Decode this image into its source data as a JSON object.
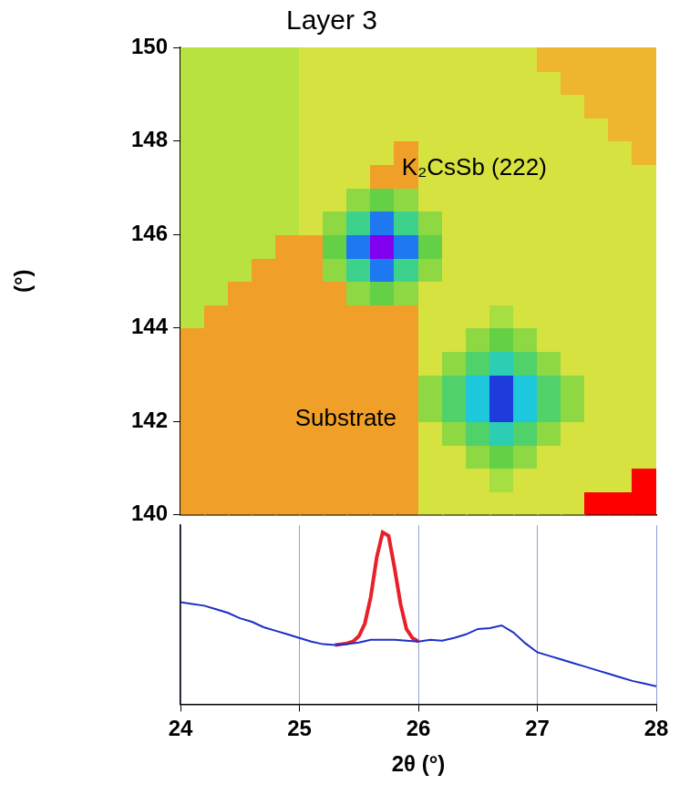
{
  "chart_data": [
    {
      "type": "heatmap",
      "title": "Layer 3",
      "y_label": "(°)",
      "xlim": [
        24,
        28
      ],
      "ylim": [
        140,
        150
      ],
      "yticks": [
        140,
        142,
        144,
        146,
        148,
        150
      ],
      "tick_labels": "y",
      "zlim": [
        0,
        10
      ],
      "cells": {
        "x": [
          24.1,
          24.3,
          24.5,
          24.7,
          24.9,
          25.1,
          25.3,
          25.5,
          25.7,
          25.9,
          26.1,
          26.3,
          26.5,
          26.7,
          26.9,
          27.1,
          27.3,
          27.5,
          27.7,
          27.9
        ],
        "y": [
          140.25,
          140.75,
          141.25,
          141.75,
          142.25,
          142.75,
          143.25,
          143.75,
          144.25,
          144.75,
          145.25,
          145.75,
          146.25,
          146.75,
          147.25,
          147.75,
          148.25,
          148.75,
          149.25,
          149.75
        ],
        "z": [
          [
            2,
            2,
            2,
            2,
            2,
            2,
            2,
            2,
            2,
            2,
            3.5,
            3.5,
            3.5,
            3.5,
            3.5,
            3.5,
            3.5,
            0,
            0,
            0
          ],
          [
            2,
            2,
            2,
            2,
            2,
            2,
            2,
            2,
            2,
            2,
            3.5,
            3.5,
            3.5,
            4.2,
            3.5,
            3.5,
            3.5,
            3.5,
            3.5,
            0
          ],
          [
            2,
            2,
            2,
            2,
            2,
            2,
            2,
            2,
            2,
            2,
            3.5,
            3.5,
            4.5,
            5,
            4.5,
            3.5,
            3.5,
            3.5,
            3.5,
            3.5
          ],
          [
            2,
            2,
            2,
            2,
            2,
            2,
            2,
            2,
            2,
            2,
            3.5,
            4.5,
            5.5,
            6.5,
            5.5,
            4.5,
            3.5,
            3.5,
            3.5,
            3.5
          ],
          [
            2,
            2,
            2,
            2,
            2,
            2,
            2,
            2,
            2,
            2,
            4.5,
            5.5,
            7,
            9,
            7,
            5.5,
            4.5,
            3.5,
            3.5,
            3.5
          ],
          [
            2,
            2,
            2,
            2,
            2,
            2,
            2,
            2,
            2,
            2,
            4.5,
            5.5,
            7,
            9,
            7,
            5.5,
            4.5,
            3.5,
            3.5,
            3.5
          ],
          [
            2,
            2,
            2,
            2,
            2,
            2,
            2,
            2,
            2,
            2,
            3.5,
            4.5,
            5.5,
            6.5,
            5.5,
            4.5,
            3.5,
            3.5,
            3.5,
            3.5
          ],
          [
            2,
            2,
            2,
            2,
            2,
            2,
            2,
            2,
            2,
            2,
            3.5,
            3.5,
            4.5,
            5,
            4.5,
            3.5,
            3.5,
            3.5,
            3.5,
            3.5
          ],
          [
            4,
            2,
            2,
            2,
            2,
            2,
            2,
            2,
            2,
            2,
            3.5,
            3.5,
            3.5,
            4.2,
            3.5,
            3.5,
            3.5,
            3.5,
            3.5,
            3.5
          ],
          [
            4,
            4,
            2,
            2,
            2,
            2,
            2,
            4.5,
            5,
            4.5,
            3.5,
            3.5,
            3.5,
            3.5,
            3.5,
            3.5,
            3.5,
            3.5,
            3.5,
            3.5
          ],
          [
            4,
            4,
            4,
            2,
            2,
            2,
            4.5,
            6,
            8,
            6,
            4.5,
            3.5,
            3.5,
            3.5,
            3.5,
            3.5,
            3.5,
            3.5,
            3.5,
            3.5
          ],
          [
            4,
            4,
            4,
            4,
            2,
            2,
            5,
            8,
            10,
            8,
            5,
            3.5,
            3.5,
            3.5,
            3.5,
            3.5,
            3.5,
            3.5,
            3.5,
            3.5
          ],
          [
            4,
            4,
            4,
            4,
            4,
            3.5,
            4.5,
            6,
            8,
            6,
            4.5,
            3.5,
            3.5,
            3.5,
            3.5,
            3.5,
            3.5,
            3.5,
            3.5,
            3.5
          ],
          [
            4,
            4,
            4,
            4,
            4,
            3.5,
            3.5,
            4.5,
            5,
            4.5,
            3.5,
            3.5,
            3.5,
            3.5,
            3.5,
            3.5,
            3.5,
            3.5,
            3.5,
            3.5
          ],
          [
            4,
            4,
            4,
            4,
            4,
            3.5,
            3.5,
            3.5,
            2,
            2,
            3.5,
            3.5,
            3.5,
            3.5,
            3.5,
            3.5,
            3.5,
            3.5,
            3.5,
            3.5
          ],
          [
            4,
            4,
            4,
            4,
            4,
            3.5,
            3.5,
            3.5,
            3.5,
            2,
            3.5,
            3.5,
            3.5,
            3.5,
            3.5,
            3.5,
            3.5,
            3.5,
            3.5,
            2.5
          ],
          [
            4,
            4,
            4,
            4,
            4,
            3.5,
            3.5,
            3.5,
            3.5,
            3.5,
            3.5,
            3.5,
            3.5,
            3.5,
            3.5,
            3.5,
            3.5,
            3.5,
            2.5,
            2.5
          ],
          [
            4,
            4,
            4,
            4,
            4,
            3.5,
            3.5,
            3.5,
            3.5,
            3.5,
            3.5,
            3.5,
            3.5,
            3.5,
            3.5,
            3.5,
            3.5,
            2.5,
            2.5,
            2.5
          ],
          [
            4,
            4,
            4,
            4,
            4,
            3.5,
            3.5,
            3.5,
            3.5,
            3.5,
            3.5,
            3.5,
            3.5,
            3.5,
            3.5,
            3.5,
            2.5,
            2.5,
            2.5,
            2.5
          ],
          [
            4,
            4,
            4,
            4,
            4,
            3.5,
            3.5,
            3.5,
            3.5,
            3.5,
            3.5,
            3.5,
            3.5,
            3.5,
            3.5,
            2.5,
            2.5,
            2.5,
            2.5,
            2.5
          ]
        ]
      },
      "annotations": [
        {
          "text": "K₂CsSb (222)",
          "x": 26.47,
          "y": 147.4
        },
        {
          "text": "Substrate",
          "x": 25.39,
          "y": 142.05
        }
      ]
    },
    {
      "type": "line",
      "x_label": "2θ (°)",
      "xlim": [
        24,
        28
      ],
      "xticks": [
        24,
        25,
        26,
        27,
        28
      ],
      "ylim": [
        0,
        10
      ],
      "grid": true,
      "tick_labels": "x",
      "series": [
        {
          "color": "#1c2fc4",
          "line_style": "solid",
          "x": [
            24.0,
            24.1,
            24.2,
            24.3,
            24.4,
            24.5,
            24.6,
            24.7,
            24.8,
            24.9,
            25.0,
            25.1,
            25.2,
            25.3,
            25.4,
            25.5,
            25.6,
            25.7,
            25.8,
            25.9,
            26.0,
            26.1,
            26.2,
            26.3,
            26.4,
            26.5,
            26.6,
            26.7,
            26.8,
            26.9,
            27.0,
            27.1,
            27.2,
            27.3,
            27.4,
            27.5,
            27.6,
            27.7,
            27.8,
            27.9,
            28.0
          ],
          "values": [
            5.7,
            5.6,
            5.5,
            5.3,
            5.1,
            4.8,
            4.6,
            4.3,
            4.1,
            3.9,
            3.7,
            3.5,
            3.35,
            3.3,
            3.35,
            3.45,
            3.6,
            3.6,
            3.6,
            3.55,
            3.5,
            3.6,
            3.55,
            3.7,
            3.9,
            4.2,
            4.25,
            4.4,
            4.0,
            3.4,
            2.9,
            2.7,
            2.5,
            2.3,
            2.1,
            1.9,
            1.7,
            1.5,
            1.3,
            1.15,
            1.0
          ]
        },
        {
          "color": "#e8202a",
          "line_style": "solid",
          "x": [
            25.3,
            25.35,
            25.4,
            25.45,
            25.5,
            25.55,
            25.6,
            25.65,
            25.7,
            25.75,
            25.8,
            25.85,
            25.9,
            25.95,
            26.0
          ],
          "values": [
            3.3,
            3.35,
            3.4,
            3.5,
            3.8,
            4.5,
            6.0,
            8.2,
            9.6,
            9.4,
            7.6,
            5.6,
            4.2,
            3.7,
            3.5
          ]
        }
      ]
    }
  ]
}
